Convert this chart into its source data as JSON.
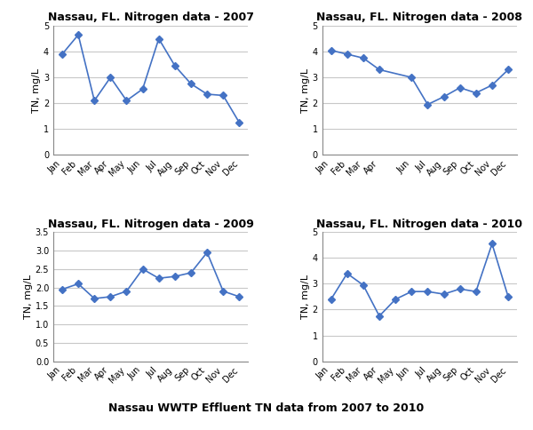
{
  "months": [
    "Jan",
    "Feb",
    "Mar",
    "Apr",
    "May",
    "Jun",
    "Jul",
    "Aug",
    "Sep",
    "Oct",
    "Nov",
    "Dec"
  ],
  "data_2007": [
    3.9,
    4.65,
    2.1,
    3.0,
    2.1,
    2.55,
    4.5,
    3.45,
    2.75,
    2.35,
    2.3,
    1.25
  ],
  "data_2008": [
    4.05,
    3.9,
    3.75,
    3.3,
    null,
    3.0,
    1.95,
    2.25,
    2.6,
    2.4,
    2.7,
    3.3
  ],
  "data_2009": [
    1.95,
    2.1,
    1.7,
    1.75,
    1.9,
    2.5,
    2.25,
    2.3,
    2.4,
    2.95,
    1.9,
    1.75
  ],
  "data_2010": [
    2.4,
    3.4,
    2.95,
    1.75,
    2.4,
    2.7,
    2.7,
    2.6,
    2.8,
    2.7,
    4.55,
    2.5
  ],
  "titles": [
    "Nassau, FL. Nitrogen data - 2007",
    "Nassau, FL. Nitrogen data - 2008",
    "Nassau, FL. Nitrogen data - 2009",
    "Nassau, FL. Nitrogen data - 2010"
  ],
  "ylims": {
    "2007": [
      0,
      5
    ],
    "2008": [
      0,
      5
    ],
    "2009": [
      0,
      3.5
    ],
    "2010": [
      0,
      5
    ]
  },
  "yticks": {
    "2007": [
      0,
      1,
      2,
      3,
      4,
      5
    ],
    "2008": [
      0,
      1,
      2,
      3,
      4,
      5
    ],
    "2009": [
      0,
      0.5,
      1.0,
      1.5,
      2.0,
      2.5,
      3.0,
      3.5
    ],
    "2010": [
      0,
      1,
      2,
      3,
      4,
      5
    ]
  },
  "line_color": "#4472C4",
  "marker": "D",
  "marker_size": 4,
  "ylabel": "TN, mg/L",
  "caption": "Nassau WWTP Effluent TN data from 2007 to 2010",
  "background_color": "#ffffff",
  "grid_color": "#c8c8c8",
  "title_fontsize": 9,
  "tick_fontsize": 7,
  "ylabel_fontsize": 8
}
